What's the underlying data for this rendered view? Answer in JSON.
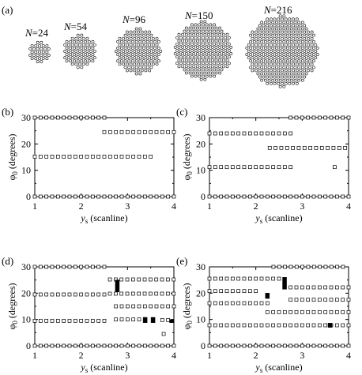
{
  "figure": {
    "panel_a": {
      "label": "(a)",
      "clusters": [
        {
          "label_prefix": "N",
          "label_value": "=24"
        },
        {
          "label_prefix": "N",
          "label_value": "=54"
        },
        {
          "label_prefix": "N",
          "label_value": "=96"
        },
        {
          "label_prefix": "N",
          "label_value": "=150"
        },
        {
          "label_prefix": "N",
          "label_value": "=216"
        }
      ]
    }
  },
  "chart_data": [
    {
      "id": "b",
      "label": "(b)",
      "type": "scatter",
      "xlabel_var": "y",
      "xlabel_sub": "s",
      "xlabel_rest": " (scanline)",
      "ylabel_var": "φ",
      "ylabel_sub": "0",
      "ylabel_rest": " (degrees)",
      "xlim": [
        1,
        4
      ],
      "ylim": [
        0,
        30
      ],
      "xticks": [
        "1",
        "2",
        "3",
        "4"
      ],
      "yticks": [
        "0",
        "10",
        "20",
        "30"
      ],
      "runs": [
        {
          "x0": 1.0,
          "x1": 4.0,
          "step": 0.125,
          "y": 0
        },
        {
          "x0": 1.0,
          "x1": 2.62,
          "step": 0.125,
          "y": 30
        },
        {
          "x0": 1.0,
          "x1": 3.5,
          "step": 0.125,
          "y": 15.2
        },
        {
          "x0": 2.5,
          "x1": 4.0,
          "step": 0.125,
          "y": 24.5
        }
      ],
      "solid": []
    },
    {
      "id": "c",
      "label": "(c)",
      "type": "scatter",
      "xlabel_var": "y",
      "xlabel_sub": "s",
      "xlabel_rest": " (scanline)",
      "ylabel_var": "φ",
      "ylabel_sub": "0",
      "ylabel_rest": " (degrees)",
      "xlim": [
        1,
        4
      ],
      "ylim": [
        0,
        30
      ],
      "xticks": [
        "1",
        "2",
        "3",
        "4"
      ],
      "yticks": [
        "0",
        "10",
        "20",
        "30"
      ],
      "runs": [
        {
          "x0": 1.0,
          "x1": 4.0,
          "step": 0.125,
          "y": 0
        },
        {
          "x0": 1.0,
          "x1": 2.75,
          "step": 0.125,
          "y": 11.2
        },
        {
          "x0": 1.0,
          "x1": 2.75,
          "step": 0.125,
          "y": 24.0
        },
        {
          "x0": 2.75,
          "x1": 4.0,
          "step": 0.125,
          "y": 30
        },
        {
          "x0": 2.3,
          "x1": 4.0,
          "step": 0.125,
          "y": 18.5
        },
        {
          "x0": 3.7,
          "x1": 3.7,
          "step": 0.125,
          "y": 11.2
        }
      ],
      "solid": []
    },
    {
      "id": "d",
      "label": "(d)",
      "type": "scatter",
      "xlabel_var": "y",
      "xlabel_sub": "s",
      "xlabel_rest": " (scanline)",
      "ylabel_var": "φ",
      "ylabel_sub": "0",
      "ylabel_rest": " (degrees)",
      "xlim": [
        1,
        4
      ],
      "ylim": [
        0,
        30
      ],
      "xticks": [
        "1",
        "2",
        "3",
        "4"
      ],
      "yticks": [
        "0",
        "10",
        "20",
        "30"
      ],
      "runs": [
        {
          "x0": 1.0,
          "x1": 4.0,
          "step": 0.125,
          "y": 0
        },
        {
          "x0": 1.0,
          "x1": 2.62,
          "step": 0.125,
          "y": 30
        },
        {
          "x0": 1.0,
          "x1": 2.62,
          "step": 0.125,
          "y": 19.5
        },
        {
          "x0": 1.0,
          "x1": 2.62,
          "step": 0.125,
          "y": 9.5
        },
        {
          "x0": 2.62,
          "x1": 4.0,
          "step": 0.125,
          "y": 25.2
        },
        {
          "x0": 2.75,
          "x1": 4.0,
          "step": 0.125,
          "y": 15.0
        },
        {
          "x0": 2.62,
          "x1": 4.0,
          "step": 0.125,
          "y": 19.8
        },
        {
          "x0": 2.75,
          "x1": 3.25,
          "step": 0.125,
          "y": 10.0
        },
        {
          "x0": 3.75,
          "x1": 3.88,
          "step": 0.125,
          "y": 9.8
        },
        {
          "x0": 3.78,
          "x1": 3.78,
          "step": 0.125,
          "y": 4.5
        }
      ],
      "solid": [
        {
          "x": 2.78,
          "y0": 20.5,
          "y1": 25.0
        },
        {
          "x": 3.38,
          "y0": 8.8,
          "y1": 10.8
        },
        {
          "x": 3.55,
          "y0": 8.8,
          "y1": 10.8
        },
        {
          "x": 3.95,
          "y0": 8.8,
          "y1": 10.0
        }
      ]
    },
    {
      "id": "e",
      "label": "(e)",
      "type": "scatter",
      "xlabel_var": "y",
      "xlabel_sub": "s",
      "xlabel_rest": " (scanline)",
      "ylabel_var": "φ",
      "ylabel_sub": "0",
      "ylabel_rest": " (degrees)",
      "xlim": [
        1,
        4
      ],
      "ylim": [
        0,
        30
      ],
      "xticks": [
        "1",
        "2",
        "3",
        "4"
      ],
      "yticks": [
        "0",
        "10",
        "20",
        "30"
      ],
      "runs": [
        {
          "x0": 1.0,
          "x1": 4.0,
          "step": 0.125,
          "y": 0
        },
        {
          "x0": 1.0,
          "x1": 4.0,
          "step": 0.125,
          "y": 7.8
        },
        {
          "x0": 1.0,
          "x1": 2.62,
          "step": 0.125,
          "y": 25.5
        },
        {
          "x0": 1.0,
          "x1": 2.25,
          "step": 0.125,
          "y": 16.2
        },
        {
          "x0": 1.0,
          "x1": 2.12,
          "step": 0.125,
          "y": 20.8
        },
        {
          "x0": 2.38,
          "x1": 4.0,
          "step": 0.125,
          "y": 30
        },
        {
          "x0": 2.75,
          "x1": 4.0,
          "step": 0.125,
          "y": 22.2
        },
        {
          "x0": 2.75,
          "x1": 4.0,
          "step": 0.125,
          "y": 17.5
        },
        {
          "x0": 2.25,
          "x1": 4.0,
          "step": 0.125,
          "y": 12.8
        }
      ],
      "solid": [
        {
          "x": 2.25,
          "y0": 18.0,
          "y1": 20.0
        },
        {
          "x": 2.62,
          "y0": 21.5,
          "y1": 26.0
        },
        {
          "x": 3.6,
          "y0": 7.0,
          "y1": 8.6
        }
      ]
    }
  ]
}
